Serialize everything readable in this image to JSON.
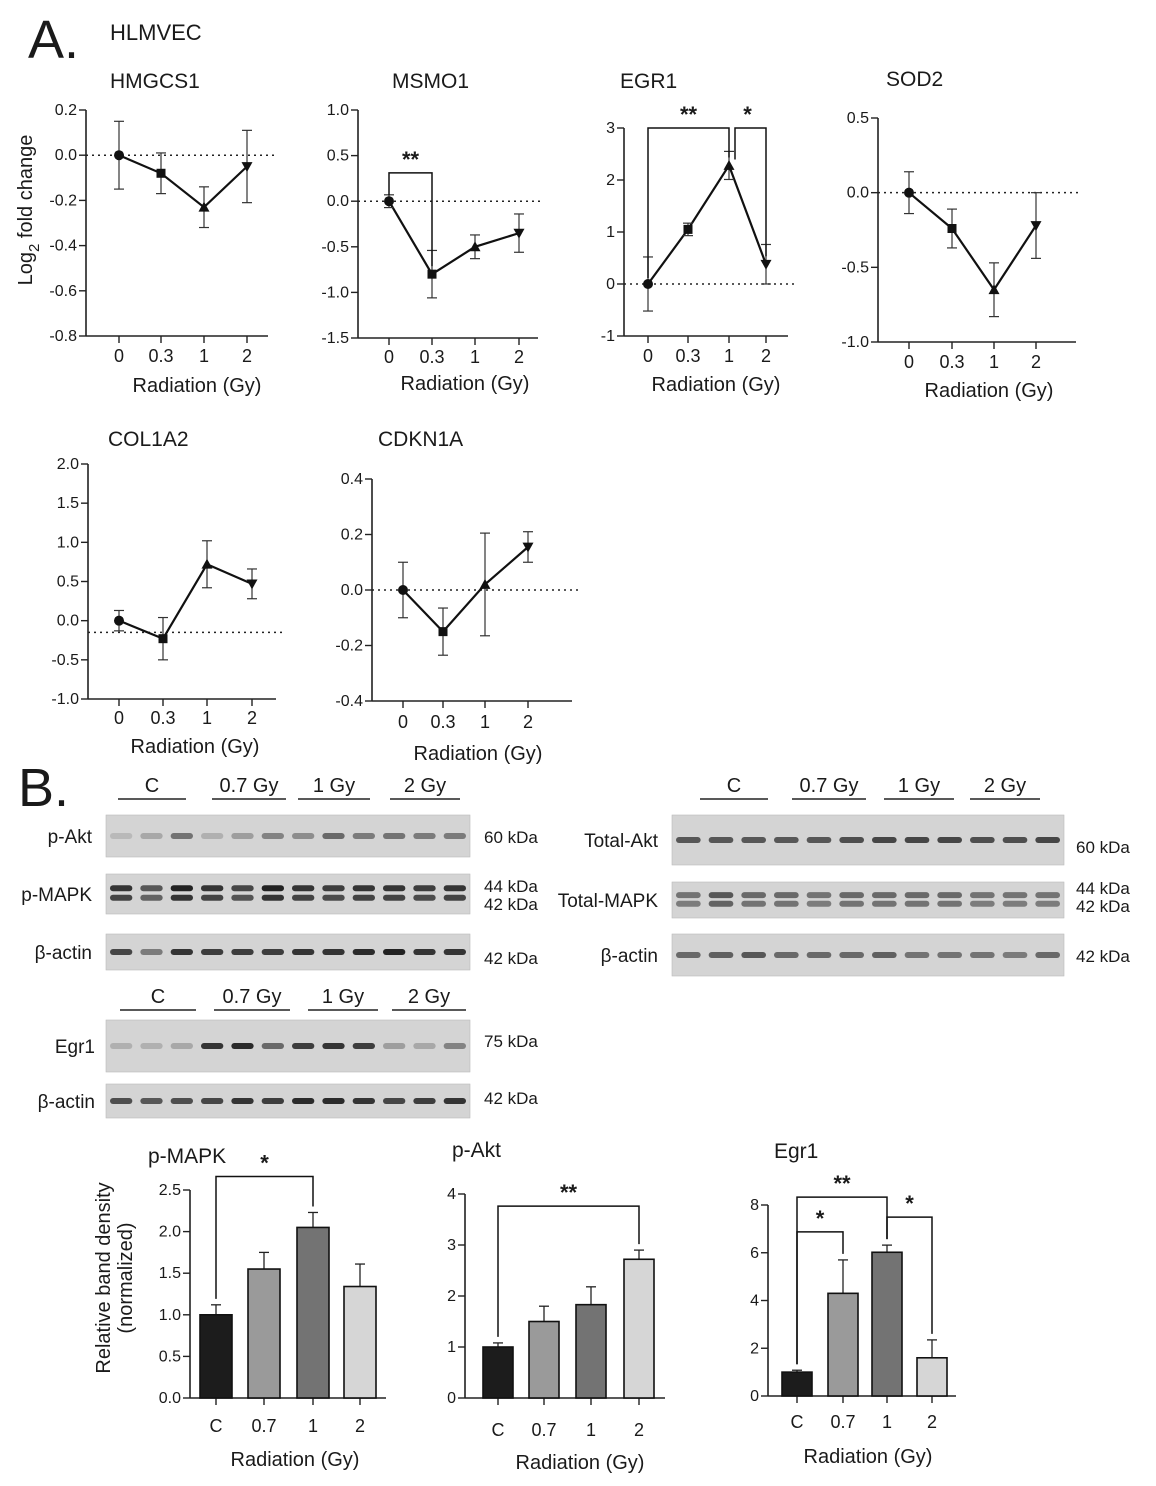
{
  "panel_a": {
    "letter": "A.",
    "cell_line": "HLMVEC",
    "ylabel_base": "Log",
    "ylabel_sub": "2",
    "ylabel_rest": " fold change"
  },
  "panel_b": {
    "letter": "B.",
    "ylabel_line1": "Relative band density",
    "ylabel_line2": "(normalized)"
  },
  "blots": {
    "left": {
      "lanes": [
        "C",
        "0.7 Gy",
        "1 Gy",
        "2 Gy"
      ],
      "rows": [
        {
          "label": "p-Akt",
          "kda": [
            "60 kDa"
          ]
        },
        {
          "label": "p-MAPK",
          "kda": [
            "44 kDa",
            "42 kDa"
          ]
        },
        {
          "label": "β-actin",
          "kda": [
            "42 kDa"
          ]
        }
      ]
    },
    "right": {
      "lanes": [
        "C",
        "0.7 Gy",
        "1 Gy",
        "2 Gy"
      ],
      "rows": [
        {
          "label": "Total-Akt",
          "kda": [
            "60 kDa"
          ]
        },
        {
          "label": "Total-MAPK",
          "kda": [
            "44 kDa",
            "42 kDa"
          ]
        },
        {
          "label": "β-actin",
          "kda": [
            "42 kDa"
          ]
        }
      ]
    },
    "egr": {
      "lanes": [
        "C",
        "0.7 Gy",
        "1 Gy",
        "2 Gy"
      ],
      "rows": [
        {
          "label": "Egr1",
          "kda": [
            "75 kDa"
          ]
        },
        {
          "label": "β-actin",
          "kda": [
            "42 kDa"
          ]
        }
      ]
    }
  },
  "chart_data": [
    {
      "type": "line",
      "title": "HMGCS1",
      "xlabel": "Radiation (Gy)",
      "ylabel": "Log2 fold change",
      "categories": [
        "0",
        "0.3",
        "1",
        "2"
      ],
      "values": [
        0.0,
        -0.08,
        -0.23,
        -0.05
      ],
      "errors": [
        0.15,
        0.09,
        0.09,
        0.16
      ],
      "markers": [
        "circle",
        "square",
        "triangle-up",
        "triangle-down"
      ],
      "ylim": [
        -0.8,
        0.2
      ],
      "yticks": [
        0.2,
        0.0,
        -0.2,
        -0.4,
        -0.6,
        -0.8
      ],
      "ytick_labels": [
        "0.2",
        "0.0",
        "-0.2",
        "-0.4",
        "-0.6",
        "-0.8"
      ],
      "baseline": 0.0,
      "significance": []
    },
    {
      "type": "line",
      "title": "MSMO1",
      "xlabel": "Radiation (Gy)",
      "ylabel": "",
      "categories": [
        "0",
        "0.3",
        "1",
        "2"
      ],
      "values": [
        0.0,
        -0.8,
        -0.5,
        -0.35
      ],
      "errors": [
        0.07,
        0.26,
        0.13,
        0.21
      ],
      "markers": [
        "circle",
        "square",
        "triangle-up",
        "triangle-down"
      ],
      "ylim": [
        -1.5,
        1.0
      ],
      "yticks": [
        1.0,
        0.5,
        0.0,
        -0.5,
        -1.0,
        -1.5
      ],
      "ytick_labels": [
        "1.0",
        "0.5",
        "0.0",
        "-0.5",
        "-1.0",
        "-1.5"
      ],
      "baseline": 0.0,
      "significance": [
        {
          "from": 0,
          "to": 1,
          "label": "**"
        }
      ]
    },
    {
      "type": "line",
      "title": "EGR1",
      "xlabel": "Radiation (Gy)",
      "ylabel": "",
      "categories": [
        "0",
        "0.3",
        "1",
        "2"
      ],
      "values": [
        0.0,
        1.05,
        2.28,
        0.38
      ],
      "errors": [
        0.52,
        0.12,
        0.27,
        0.38
      ],
      "markers": [
        "circle",
        "square",
        "triangle-up",
        "triangle-down"
      ],
      "ylim": [
        -1,
        3
      ],
      "yticks": [
        3,
        2,
        1,
        0,
        -1
      ],
      "ytick_labels": [
        "3",
        "2",
        "1",
        "0",
        "-1"
      ],
      "baseline": 0.0,
      "significance": [
        {
          "from": 0,
          "to": 2,
          "label": "**"
        },
        {
          "from": 2,
          "to": 3,
          "label": "*"
        }
      ]
    },
    {
      "type": "line",
      "title": "SOD2",
      "xlabel": "Radiation (Gy)",
      "ylabel": "",
      "categories": [
        "0",
        "0.3",
        "1",
        "2"
      ],
      "values": [
        0.0,
        -0.24,
        -0.65,
        -0.22
      ],
      "errors": [
        0.14,
        0.13,
        0.18,
        0.22
      ],
      "markers": [
        "circle",
        "square",
        "triangle-up",
        "triangle-down"
      ],
      "ylim": [
        -1.0,
        0.5
      ],
      "yticks": [
        0.5,
        0.0,
        -0.5,
        -1.0
      ],
      "ytick_labels": [
        "0.5",
        "0.0",
        "-0.5",
        "-1.0"
      ],
      "baseline": 0.0,
      "significance": []
    },
    {
      "type": "line",
      "title": "COL1A2",
      "xlabel": "Radiation (Gy)",
      "ylabel": "",
      "categories": [
        "0",
        "0.3",
        "1",
        "2"
      ],
      "values": [
        0.0,
        -0.23,
        0.72,
        0.47
      ],
      "errors": [
        0.13,
        0.27,
        0.3,
        0.19
      ],
      "markers": [
        "circle",
        "square",
        "triangle-up",
        "triangle-down"
      ],
      "ylim": [
        -1.0,
        2.0
      ],
      "yticks": [
        2.0,
        1.5,
        1.0,
        0.5,
        0.0,
        -0.5,
        -1.0
      ],
      "ytick_labels": [
        "2.0",
        "1.5",
        "1.0",
        "0.5",
        "0.0",
        "-0.5",
        "-1.0"
      ],
      "baseline": -0.15,
      "significance": []
    },
    {
      "type": "line",
      "title": "CDKN1A",
      "xlabel": "Radiation (Gy)",
      "ylabel": "",
      "categories": [
        "0",
        "0.3",
        "1",
        "2"
      ],
      "values": [
        0.0,
        -0.15,
        0.02,
        0.155
      ],
      "errors": [
        0.1,
        0.085,
        0.185,
        0.055
      ],
      "markers": [
        "circle",
        "square",
        "triangle-up",
        "triangle-down"
      ],
      "ylim": [
        -0.4,
        0.4
      ],
      "yticks": [
        0.4,
        0.2,
        0.0,
        -0.2,
        -0.4
      ],
      "ytick_labels": [
        "0.4",
        "0.2",
        "0.0",
        "-0.2",
        "-0.4"
      ],
      "baseline": 0.0,
      "significance": []
    },
    {
      "type": "bar",
      "title": "p-MAPK",
      "xlabel": "Radiation (Gy)",
      "ylabel": "Relative band density (normalized)",
      "categories": [
        "C",
        "0.7",
        "1",
        "2"
      ],
      "values": [
        1.0,
        1.55,
        2.05,
        1.34
      ],
      "errors": [
        0.12,
        0.2,
        0.18,
        0.27
      ],
      "colors": [
        "#1c1c1c",
        "#9a9a9a",
        "#737373",
        "#d6d6d6"
      ],
      "ylim": [
        0,
        2.5
      ],
      "yticks": [
        0,
        0.5,
        1.0,
        1.5,
        2.0,
        2.5
      ],
      "ytick_labels": [
        "0.0",
        "0.5",
        "1.0",
        "1.5",
        "2.0",
        "2.5"
      ],
      "significance": [
        {
          "from": 0,
          "to": 2,
          "label": "*"
        }
      ]
    },
    {
      "type": "bar",
      "title": "p-Akt",
      "xlabel": "Radiation (Gy)",
      "ylabel": "",
      "categories": [
        "C",
        "0.7",
        "1",
        "2"
      ],
      "values": [
        1.0,
        1.5,
        1.83,
        2.72
      ],
      "errors": [
        0.08,
        0.3,
        0.35,
        0.18
      ],
      "colors": [
        "#1c1c1c",
        "#9a9a9a",
        "#737373",
        "#d6d6d6"
      ],
      "ylim": [
        0,
        4
      ],
      "yticks": [
        0,
        1,
        2,
        3,
        4
      ],
      "ytick_labels": [
        "0",
        "1",
        "2",
        "3",
        "4"
      ],
      "significance": [
        {
          "from": 0,
          "to": 3,
          "label": "**"
        }
      ]
    },
    {
      "type": "bar",
      "title": "Egr1",
      "xlabel": "Radiation (Gy)",
      "ylabel": "",
      "categories": [
        "C",
        "0.7",
        "1",
        "2"
      ],
      "values": [
        1.0,
        4.3,
        6.02,
        1.6
      ],
      "errors": [
        0.08,
        1.4,
        0.3,
        0.75
      ],
      "colors": [
        "#1c1c1c",
        "#9a9a9a",
        "#737373",
        "#d6d6d6"
      ],
      "ylim": [
        0,
        8
      ],
      "yticks": [
        0,
        2,
        4,
        6,
        8
      ],
      "ytick_labels": [
        "0",
        "2",
        "4",
        "6",
        "8"
      ],
      "significance": [
        {
          "from": 0,
          "to": 2,
          "label": "**"
        },
        {
          "from": 0,
          "to": 1,
          "label": "*"
        },
        {
          "from": 2,
          "to": 3,
          "label": "*"
        }
      ]
    }
  ]
}
